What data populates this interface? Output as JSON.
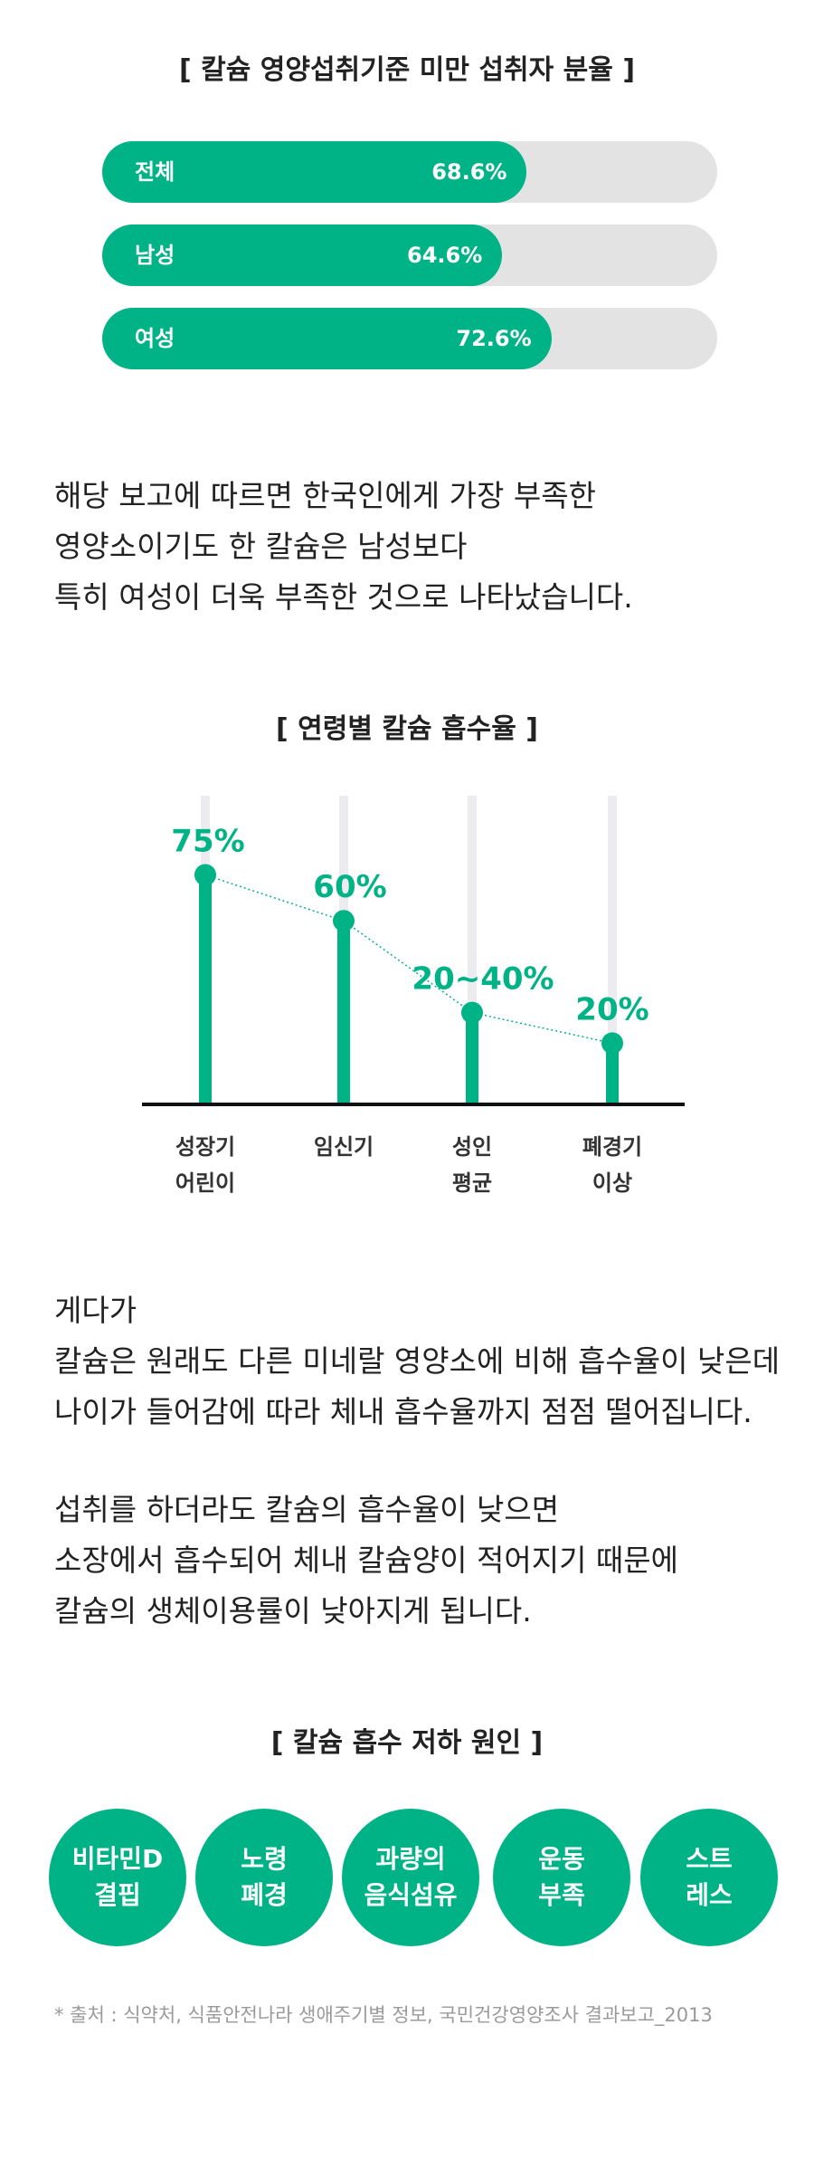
{
  "colors": {
    "accent": "#00b386",
    "track": "#e3e3e3",
    "grid": "#ececf0",
    "axis": "#111111"
  },
  "section1": {
    "title": "[ 칼슘 영양섭취기준 미만 섭취자 분율 ]",
    "bars": [
      {
        "label": "전체",
        "value_text": "68.6%",
        "percent": 68.6
      },
      {
        "label": "남성",
        "value_text": "64.6%",
        "percent": 64.6
      },
      {
        "label": "여성",
        "value_text": "72.6%",
        "percent": 72.6
      }
    ]
  },
  "paragraph1": {
    "lines": [
      "해당 보고에 따르면 한국인에게 가장 부족한",
      "영양소이기도 한 칼슘은 남성보다",
      "특히 여성이 더욱 부족한 것으로 나타났습니다."
    ]
  },
  "chart_data": {
    "type": "line",
    "title": "[ 연령별 칼슘 흡수율 ]",
    "categories": [
      [
        "성장기",
        "어린이"
      ],
      [
        "임신기"
      ],
      [
        "성인",
        "평균"
      ],
      [
        "폐경기",
        "이상"
      ]
    ],
    "values": [
      75,
      60,
      30,
      20
    ],
    "labels": [
      "75%",
      "60%",
      "20~40%",
      "20%"
    ],
    "ylim": [
      0,
      100
    ],
    "grid": true
  },
  "paragraph2": {
    "lines": [
      "게다가",
      "칼슘은 원래도 다른 미네랄 영양소에 비해 흡수율이 낮은데",
      "나이가 들어감에 따라 체내 흡수율까지 점점 떨어집니다."
    ]
  },
  "paragraph3": {
    "lines": [
      "섭취를 하더라도 칼슘의 흡수율이 낮으면",
      "소장에서 흡수되어 체내 칼슘양이 적어지기 때문에",
      "칼슘의 생체이용률이 낮아지게 됩니다."
    ]
  },
  "section3": {
    "title": "[ 칼슘 흡수 저하 원인 ]",
    "causes": [
      {
        "line1": "비타민D",
        "line2": "결핍"
      },
      {
        "line1": "노령",
        "line2": "폐경"
      },
      {
        "line1": "과량의",
        "line2": "음식섬유"
      },
      {
        "line1": "운동",
        "line2": "부족"
      },
      {
        "line1": "스트",
        "line2": "레스"
      }
    ]
  },
  "source": "* 출처 : 식약처, 식품안전나라 생애주기별 정보, 국민건강영양조사 결과보고_2013"
}
